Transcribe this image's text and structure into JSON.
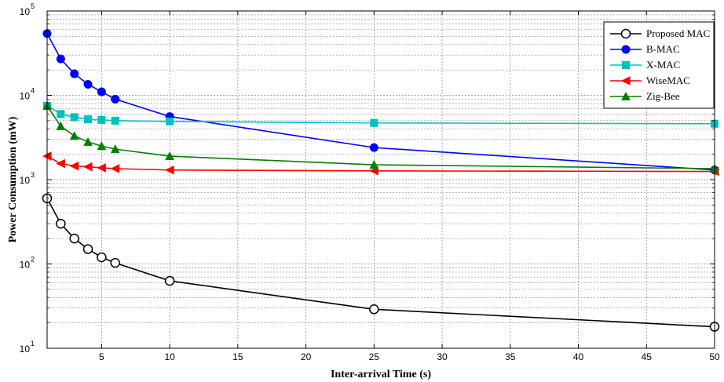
{
  "chart_data": {
    "type": "line",
    "title": "",
    "xlabel": "Inter-arrival Time (s)",
    "ylabel": "Power Consumption (mW)",
    "x_scale": "linear",
    "y_scale": "log",
    "xlim": [
      1,
      50
    ],
    "ylim": [
      10,
      100000
    ],
    "x_ticks": [
      5,
      10,
      15,
      20,
      25,
      30,
      35,
      40,
      45,
      50
    ],
    "y_ticks": [
      {
        "value": 10,
        "base": "10",
        "exp": "1"
      },
      {
        "value": 100,
        "base": "10",
        "exp": "2"
      },
      {
        "value": 1000,
        "base": "10",
        "exp": "3"
      },
      {
        "value": 10000,
        "base": "10",
        "exp": "4"
      },
      {
        "value": 100000,
        "base": "10",
        "exp": "5"
      }
    ],
    "grid": true,
    "legend_position": "top-right",
    "series": [
      {
        "name": "Proposed MAC",
        "color": "#000000",
        "marker": "circle-open",
        "x": [
          1,
          2,
          3,
          4,
          5,
          6,
          10,
          25,
          50
        ],
        "y": [
          600,
          300,
          200,
          150,
          120,
          103,
          63,
          29,
          18
        ]
      },
      {
        "name": "B-MAC",
        "color": "#0000ff",
        "marker": "circle",
        "x": [
          1,
          2,
          3,
          4,
          5,
          6,
          10,
          25,
          50
        ],
        "y": [
          54000,
          27000,
          18000,
          13500,
          11000,
          9000,
          5600,
          2400,
          1300
        ]
      },
      {
        "name": "X-MAC",
        "color": "#00c0c0",
        "marker": "square",
        "x": [
          1,
          2,
          3,
          4,
          5,
          6,
          10,
          25,
          50
        ],
        "y": [
          7500,
          6000,
          5500,
          5200,
          5100,
          5000,
          4900,
          4700,
          4600
        ]
      },
      {
        "name": "WiseMAC",
        "color": "#ff0000",
        "marker": "triangle-left",
        "x": [
          1,
          2,
          3,
          4,
          5,
          6,
          10,
          25,
          50
        ],
        "y": [
          1900,
          1550,
          1450,
          1420,
          1380,
          1350,
          1300,
          1270,
          1250
        ]
      },
      {
        "name": "Zig-Bee",
        "color": "#008000",
        "marker": "triangle-up",
        "x": [
          1,
          2,
          3,
          4,
          5,
          6,
          10,
          25,
          50
        ],
        "y": [
          7500,
          4300,
          3300,
          2800,
          2500,
          2300,
          1900,
          1500,
          1350
        ]
      }
    ]
  }
}
